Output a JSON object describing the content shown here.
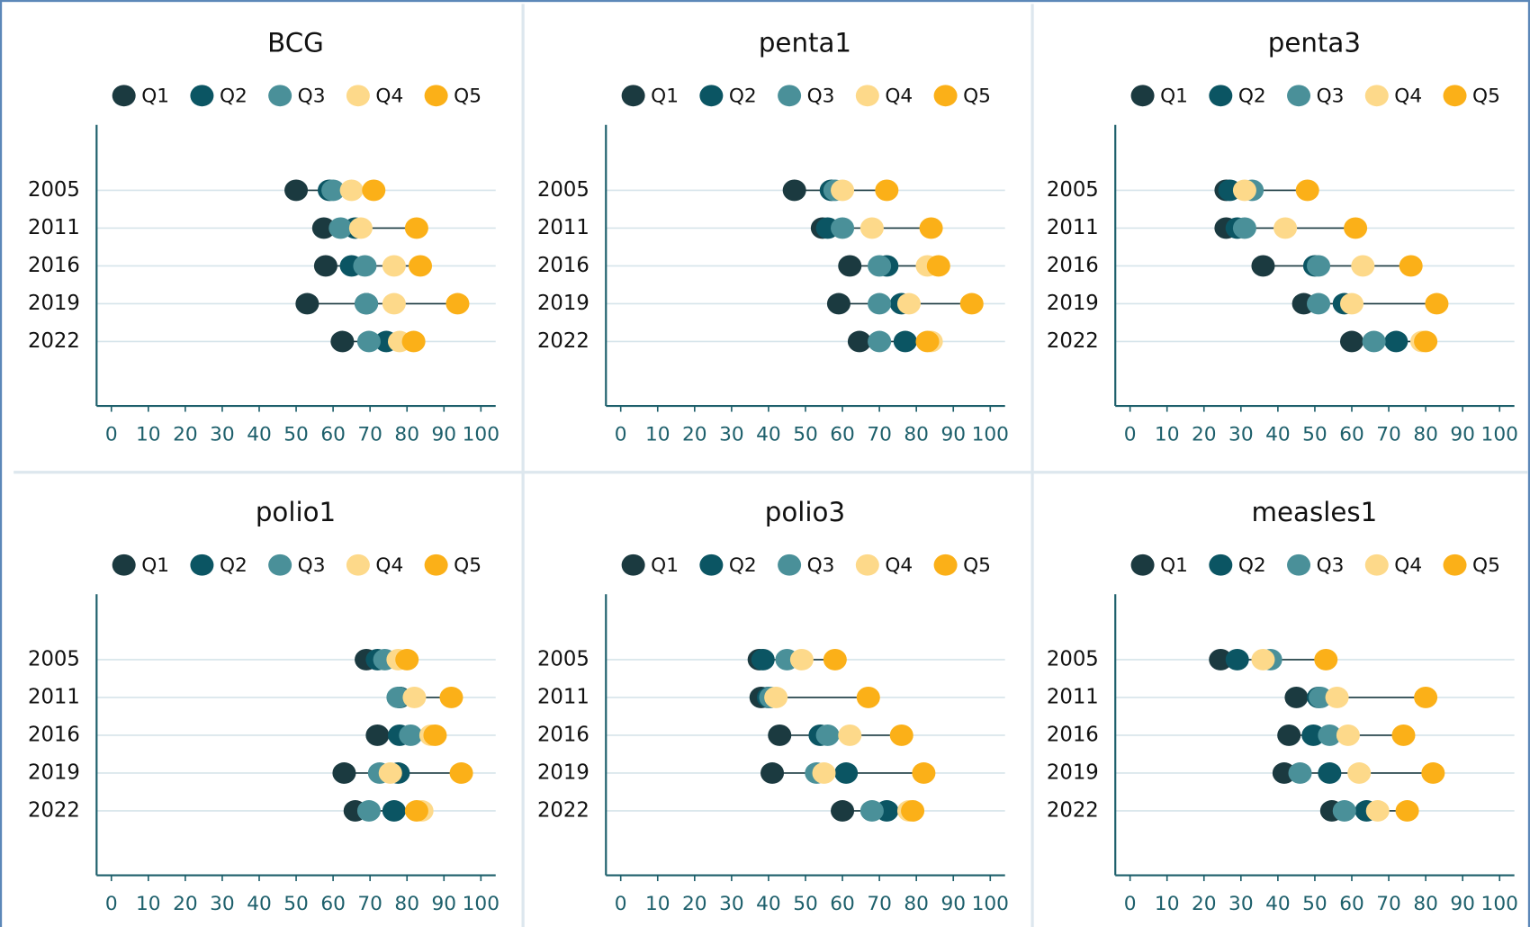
{
  "chart_data": [
    {
      "type": "dot",
      "title": "BCG",
      "categories": [
        "2005",
        "2011",
        "2016",
        "2019",
        "2022"
      ],
      "xlim": [
        -4,
        104
      ],
      "xticks": [
        0,
        10,
        20,
        30,
        40,
        50,
        60,
        70,
        80,
        90,
        100
      ],
      "series": [
        {
          "name": "Q1",
          "color": "#1b3a40",
          "values": [
            50,
            57.5,
            58,
            53,
            62.5
          ]
        },
        {
          "name": "Q2",
          "color": "#0b5563",
          "values": [
            59,
            66,
            65,
            69,
            74.4
          ]
        },
        {
          "name": "Q3",
          "color": "#4a9099",
          "values": [
            60,
            62,
            68.6,
            69,
            69.7
          ]
        },
        {
          "name": "Q4",
          "color": "#fdd98a",
          "values": [
            65,
            67.5,
            76.5,
            76.5,
            78
          ]
        },
        {
          "name": "Q5",
          "color": "#fbb018",
          "values": [
            71,
            82.6,
            83.6,
            93.7,
            81.8
          ]
        }
      ]
    },
    {
      "type": "dot",
      "title": "penta1",
      "categories": [
        "2005",
        "2011",
        "2016",
        "2019",
        "2022"
      ],
      "xlim": [
        -4,
        104
      ],
      "xticks": [
        0,
        10,
        20,
        30,
        40,
        50,
        60,
        70,
        80,
        90,
        100
      ],
      "series": [
        {
          "name": "Q1",
          "color": "#1b3a40",
          "values": [
            47,
            54.6,
            62,
            59,
            64.6
          ]
        },
        {
          "name": "Q2",
          "color": "#0b5563",
          "values": [
            57,
            56,
            72,
            76,
            77
          ]
        },
        {
          "name": "Q3",
          "color": "#4a9099",
          "values": [
            58,
            60,
            70,
            70,
            70
          ]
        },
        {
          "name": "Q4",
          "color": "#fdd98a",
          "values": [
            60,
            68,
            83,
            78,
            84
          ]
        },
        {
          "name": "Q5",
          "color": "#fbb018",
          "values": [
            72,
            84,
            86,
            95,
            83
          ]
        }
      ]
    },
    {
      "type": "dot",
      "title": "penta3",
      "categories": [
        "2005",
        "2011",
        "2016",
        "2019",
        "2022"
      ],
      "xlim": [
        -4,
        104
      ],
      "xticks": [
        0,
        10,
        20,
        30,
        40,
        50,
        60,
        70,
        80,
        90,
        100
      ],
      "series": [
        {
          "name": "Q1",
          "color": "#1b3a40",
          "values": [
            26,
            26,
            36,
            47,
            60
          ]
        },
        {
          "name": "Q2",
          "color": "#0b5563",
          "values": [
            27,
            29,
            50,
            58,
            72
          ]
        },
        {
          "name": "Q3",
          "color": "#4a9099",
          "values": [
            33,
            31,
            51,
            51,
            66
          ]
        },
        {
          "name": "Q4",
          "color": "#fdd98a",
          "values": [
            31,
            42,
            63,
            60,
            79
          ]
        },
        {
          "name": "Q5",
          "color": "#fbb018",
          "values": [
            48,
            61,
            76,
            83,
            80
          ]
        }
      ]
    },
    {
      "type": "dot",
      "title": "polio1",
      "categories": [
        "2005",
        "2011",
        "2016",
        "2019",
        "2022"
      ],
      "xlim": [
        -4,
        104
      ],
      "xticks": [
        0,
        10,
        20,
        30,
        40,
        50,
        60,
        70,
        80,
        90,
        100
      ],
      "series": [
        {
          "name": "Q1",
          "color": "#1b3a40",
          "values": [
            69,
            78,
            72,
            63,
            66
          ]
        },
        {
          "name": "Q2",
          "color": "#0b5563",
          "values": [
            72,
            78,
            78,
            77.6,
            76.5
          ]
        },
        {
          "name": "Q3",
          "color": "#4a9099",
          "values": [
            74,
            77.6,
            81,
            72.6,
            69.7
          ]
        },
        {
          "name": "Q4",
          "color": "#fdd98a",
          "values": [
            77.6,
            82,
            86.5,
            75.5,
            84
          ]
        },
        {
          "name": "Q5",
          "color": "#fbb018",
          "values": [
            80,
            92,
            87.6,
            94.7,
            82.6
          ]
        }
      ]
    },
    {
      "type": "dot",
      "title": "polio3",
      "categories": [
        "2005",
        "2011",
        "2016",
        "2019",
        "2022"
      ],
      "xlim": [
        -4,
        104
      ],
      "xticks": [
        0,
        10,
        20,
        30,
        40,
        50,
        60,
        70,
        80,
        90,
        100
      ],
      "series": [
        {
          "name": "Q1",
          "color": "#1b3a40",
          "values": [
            37.5,
            38,
            43,
            41,
            60
          ]
        },
        {
          "name": "Q2",
          "color": "#0b5563",
          "values": [
            38.5,
            40,
            54,
            61,
            72
          ]
        },
        {
          "name": "Q3",
          "color": "#4a9099",
          "values": [
            45,
            40.6,
            56,
            53,
            68
          ]
        },
        {
          "name": "Q4",
          "color": "#fdd98a",
          "values": [
            49,
            42,
            62,
            55,
            78
          ]
        },
        {
          "name": "Q5",
          "color": "#fbb018",
          "values": [
            58,
            67,
            76,
            82,
            79
          ]
        }
      ]
    },
    {
      "type": "dot",
      "title": "measles1",
      "categories": [
        "2005",
        "2011",
        "2016",
        "2019",
        "2022"
      ],
      "xlim": [
        -4,
        104
      ],
      "xticks": [
        0,
        10,
        20,
        30,
        40,
        50,
        60,
        70,
        80,
        90,
        100
      ],
      "series": [
        {
          "name": "Q1",
          "color": "#1b3a40",
          "values": [
            24.5,
            45,
            43,
            41.7,
            54.6
          ]
        },
        {
          "name": "Q2",
          "color": "#0b5563",
          "values": [
            29,
            51,
            49.6,
            54,
            64
          ]
        },
        {
          "name": "Q3",
          "color": "#4a9099",
          "values": [
            38,
            51.5,
            54,
            46,
            58
          ]
        },
        {
          "name": "Q4",
          "color": "#fdd98a",
          "values": [
            36,
            56,
            59,
            62,
            67
          ]
        },
        {
          "name": "Q5",
          "color": "#fbb018",
          "values": [
            53,
            80,
            74,
            82,
            75
          ]
        }
      ]
    }
  ]
}
